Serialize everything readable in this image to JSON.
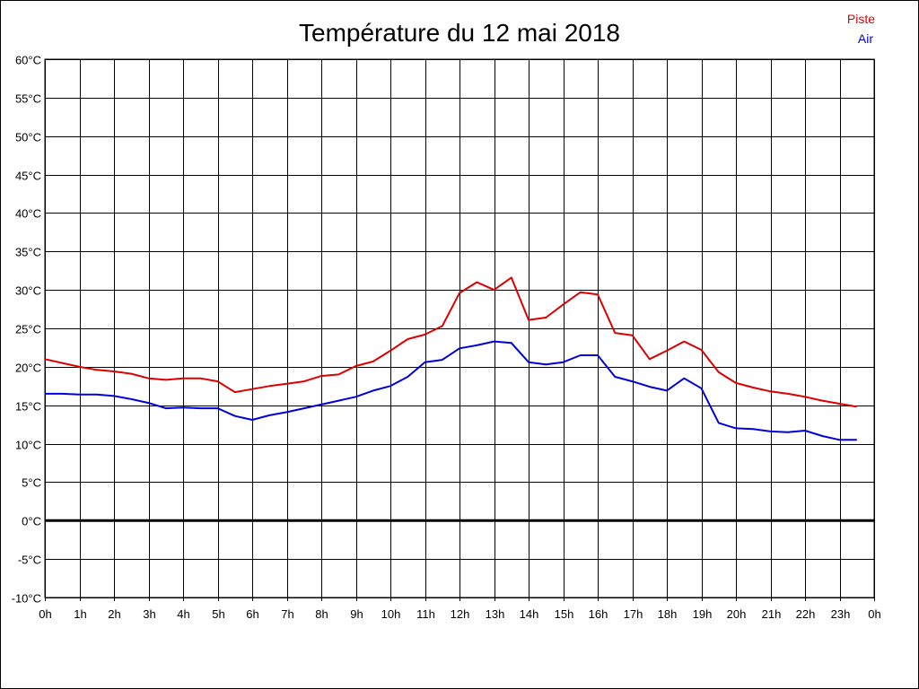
{
  "chart_data": {
    "type": "line",
    "title": "Température du 12 mai 2018",
    "ylim": [
      -10,
      60
    ],
    "y_ticks": [
      "-10°C",
      "-5°C",
      "0°C",
      "5°C",
      "10°C",
      "15°C",
      "20°C",
      "25°C",
      "30°C",
      "35°C",
      "40°C",
      "45°C",
      "50°C",
      "55°C",
      "60°C"
    ],
    "x_ticks": [
      "0h",
      "1h",
      "2h",
      "3h",
      "4h",
      "5h",
      "6h",
      "7h",
      "8h",
      "9h",
      "10h",
      "11h",
      "12h",
      "13h",
      "14h",
      "15h",
      "16h",
      "17h",
      "18h",
      "19h",
      "20h",
      "21h",
      "22h",
      "23h",
      "0h"
    ],
    "grid": true,
    "zero_line": true,
    "legend_position": "top-right",
    "x": [
      0,
      0.5,
      1,
      1.5,
      2,
      2.5,
      3,
      3.5,
      4,
      4.5,
      5,
      5.5,
      6,
      6.5,
      7,
      7.5,
      8,
      8.5,
      9,
      9.5,
      10,
      10.5,
      11,
      11.5,
      12,
      12.5,
      13,
      13.5,
      14,
      14.5,
      15,
      15.5,
      16,
      16.5,
      17,
      17.5,
      18,
      18.5,
      19,
      19.5,
      20,
      20.5,
      21,
      21.5,
      22,
      22.5,
      23,
      23.5
    ],
    "series": [
      {
        "name": "Piste",
        "color": "#dd0000",
        "values": [
          21,
          20.5,
          20,
          19.6,
          19.4,
          19.1,
          18.5,
          18.3,
          18.5,
          18.5,
          18.1,
          16.7,
          17.1,
          17.5,
          17.8,
          18.1,
          18.8,
          19,
          20.1,
          20.7,
          22.1,
          23.6,
          24.2,
          25.3,
          29.6,
          31,
          30,
          31.6,
          26.1,
          26.4,
          28.1,
          29.7,
          29.4,
          24.4,
          24.1,
          21,
          22.1,
          23.3,
          22.2,
          19.3,
          17.9,
          17.3,
          16.8,
          16.5,
          16.1,
          15.6,
          15.2,
          14.8
        ]
      },
      {
        "name": "Air",
        "color": "#0000dd",
        "values": [
          16.5,
          16.5,
          16.4,
          16.4,
          16.2,
          15.8,
          15.3,
          14.6,
          14.7,
          14.6,
          14.6,
          13.6,
          13.1,
          13.7,
          14.1,
          14.6,
          15.1,
          15.6,
          16.1,
          16.9,
          17.5,
          18.7,
          20.6,
          20.9,
          22.4,
          22.8,
          23.3,
          23.1,
          20.6,
          20.3,
          20.6,
          21.5,
          21.5,
          18.7,
          18.1,
          17.4,
          16.9,
          18.5,
          17.2,
          12.7,
          12,
          11.9,
          11.6,
          11.5,
          11.7,
          11,
          10.5,
          10.5
        ]
      }
    ]
  }
}
